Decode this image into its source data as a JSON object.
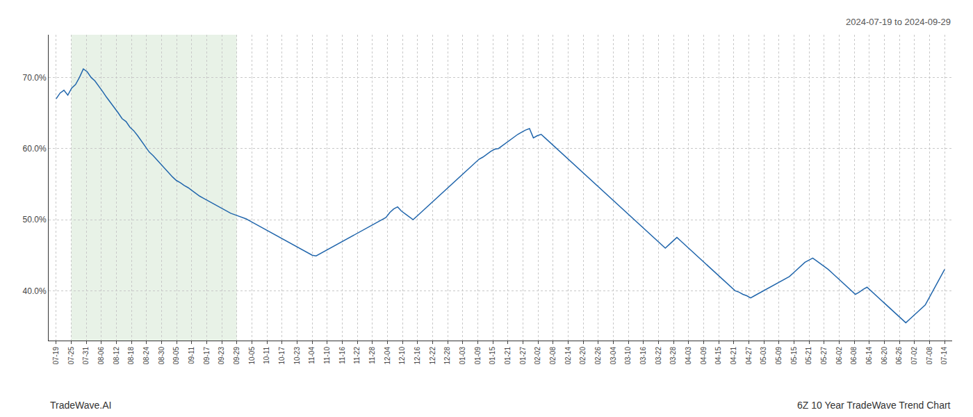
{
  "chart_data": {
    "type": "line",
    "annotations": [
      "2024-07-19 to 2024-09-29",
      "TradeWave.AI",
      "6Z 10 Year TradeWave Trend Chart"
    ],
    "color": "#2166ac",
    "grid": true,
    "highlight": {
      "start": 1,
      "end": 12,
      "color": "#d5e8d4"
    },
    "xlim": [
      -0.5,
      59.5
    ],
    "xticks": [
      {
        "value": 0,
        "label": "07-19"
      },
      {
        "value": 1,
        "label": "07-25"
      },
      {
        "value": 2,
        "label": "07-31"
      },
      {
        "value": 3,
        "label": "08-06"
      },
      {
        "value": 4,
        "label": "08-12"
      },
      {
        "value": 5,
        "label": "08-18"
      },
      {
        "value": 6,
        "label": "08-24"
      },
      {
        "value": 7,
        "label": "08-30"
      },
      {
        "value": 8,
        "label": "09-05"
      },
      {
        "value": 9,
        "label": "09-11"
      },
      {
        "value": 10,
        "label": "09-17"
      },
      {
        "value": 11,
        "label": "09-23"
      },
      {
        "value": 12,
        "label": "09-29"
      },
      {
        "value": 13,
        "label": "10-05"
      },
      {
        "value": 14,
        "label": "10-11"
      },
      {
        "value": 15,
        "label": "10-17"
      },
      {
        "value": 16,
        "label": "10-23"
      },
      {
        "value": 17,
        "label": "11-04"
      },
      {
        "value": 18,
        "label": "11-10"
      },
      {
        "value": 19,
        "label": "11-16"
      },
      {
        "value": 20,
        "label": "11-22"
      },
      {
        "value": 21,
        "label": "11-28"
      },
      {
        "value": 22,
        "label": "12-04"
      },
      {
        "value": 23,
        "label": "12-10"
      },
      {
        "value": 24,
        "label": "12-16"
      },
      {
        "value": 25,
        "label": "12-22"
      },
      {
        "value": 26,
        "label": "12-28"
      },
      {
        "value": 27,
        "label": "01-03"
      },
      {
        "value": 28,
        "label": "01-09"
      },
      {
        "value": 29,
        "label": "01-15"
      },
      {
        "value": 30,
        "label": "01-21"
      },
      {
        "value": 31,
        "label": "01-27"
      },
      {
        "value": 32,
        "label": "02-02"
      },
      {
        "value": 33,
        "label": "02-08"
      },
      {
        "value": 34,
        "label": "02-14"
      },
      {
        "value": 35,
        "label": "02-20"
      },
      {
        "value": 36,
        "label": "02-26"
      },
      {
        "value": 37,
        "label": "03-04"
      },
      {
        "value": 38,
        "label": "03-10"
      },
      {
        "value": 39,
        "label": "03-16"
      },
      {
        "value": 40,
        "label": "03-22"
      },
      {
        "value": 41,
        "label": "03-28"
      },
      {
        "value": 42,
        "label": "04-03"
      },
      {
        "value": 43,
        "label": "04-09"
      },
      {
        "value": 44,
        "label": "04-15"
      },
      {
        "value": 45,
        "label": "04-21"
      },
      {
        "value": 46,
        "label": "04-27"
      },
      {
        "value": 47,
        "label": "05-03"
      },
      {
        "value": 48,
        "label": "05-09"
      },
      {
        "value": 49,
        "label": "05-15"
      },
      {
        "value": 50,
        "label": "05-21"
      },
      {
        "value": 51,
        "label": "05-27"
      },
      {
        "value": 52,
        "label": "06-02"
      },
      {
        "value": 53,
        "label": "06-08"
      },
      {
        "value": 54,
        "label": "06-14"
      },
      {
        "value": 55,
        "label": "06-20"
      },
      {
        "value": 56,
        "label": "06-26"
      },
      {
        "value": 57,
        "label": "07-02"
      },
      {
        "value": 58,
        "label": "07-08"
      },
      {
        "value": 59,
        "label": "07-14"
      }
    ],
    "ylim": [
      33,
      76
    ],
    "yticks": [
      {
        "value": 40,
        "label": "40.0%"
      },
      {
        "value": 50,
        "label": "50.0%"
      },
      {
        "value": 60,
        "label": "60.0%"
      },
      {
        "value": 70,
        "label": "70.0%"
      }
    ],
    "values": [
      67.0,
      67.8,
      68.2,
      67.5,
      68.5,
      69.0,
      70.0,
      71.2,
      70.8,
      70.0,
      69.5,
      68.8,
      68.0,
      67.2,
      66.5,
      65.8,
      65.0,
      64.2,
      63.8,
      63.0,
      62.5,
      61.8,
      61.0,
      60.3,
      59.5,
      59.0,
      58.4,
      57.8,
      57.2,
      56.5,
      56.0,
      55.5,
      55.2,
      54.8,
      54.5,
      54.1,
      53.7,
      53.3,
      53.0,
      52.7,
      52.4,
      52.1,
      51.8,
      51.5,
      51.2,
      50.9,
      50.7,
      50.5,
      50.3,
      50.1,
      49.8,
      49.5,
      49.2,
      48.9,
      48.6,
      48.3,
      48.0,
      47.7,
      47.4,
      47.1,
      46.8,
      46.5,
      46.2,
      45.9,
      45.6,
      45.3,
      45.0,
      44.9,
      45.2,
      45.5,
      45.8,
      46.1,
      46.4,
      46.7,
      47.0,
      47.3,
      47.6,
      47.9,
      48.2,
      48.5,
      48.8,
      49.1,
      49.4,
      49.7,
      50.0,
      50.3,
      51.0,
      51.5,
      51.8,
      51.2,
      50.8,
      50.4,
      50.0,
      50.5,
      51.0,
      51.5,
      52.0,
      52.5,
      53.0,
      53.5,
      54.0,
      54.5,
      55.0,
      55.5,
      56.0,
      56.5,
      57.0,
      57.5,
      58.0,
      58.5,
      58.8,
      59.2,
      59.6,
      59.9,
      60.0,
      60.4,
      60.8,
      61.2,
      61.6,
      62.0,
      62.3,
      62.6,
      62.8,
      61.5,
      61.8,
      62.0,
      61.5,
      61.0,
      60.5,
      60.0,
      59.5,
      59.0,
      58.5,
      58.0,
      57.5,
      57.0,
      56.5,
      56.0,
      55.5,
      55.0,
      54.5,
      54.0,
      53.5,
      53.0,
      52.5,
      52.0,
      51.5,
      51.0,
      50.5,
      50.0,
      49.5,
      49.0,
      48.5,
      48.0,
      47.5,
      47.0,
      46.5,
      46.0,
      46.5,
      47.0,
      47.5,
      47.0,
      46.5,
      46.0,
      45.5,
      45.0,
      44.5,
      44.0,
      43.5,
      43.0,
      42.5,
      42.0,
      41.5,
      41.0,
      40.5,
      40.0,
      39.8,
      39.5,
      39.3,
      39.0,
      39.3,
      39.6,
      39.9,
      40.2,
      40.5,
      40.8,
      41.1,
      41.4,
      41.7,
      42.0,
      42.5,
      43.0,
      43.5,
      44.0,
      44.3,
      44.6,
      44.2,
      43.8,
      43.4,
      43.0,
      42.5,
      42.0,
      41.5,
      41.0,
      40.5,
      40.0,
      39.5,
      39.8,
      40.2,
      40.5,
      40.0,
      39.5,
      39.0,
      38.5,
      38.0,
      37.5,
      37.0,
      36.5,
      36.0,
      35.5,
      36.0,
      36.5,
      37.0,
      37.5,
      38.0,
      39.0,
      40.0,
      41.0,
      42.0,
      43.0
    ]
  }
}
